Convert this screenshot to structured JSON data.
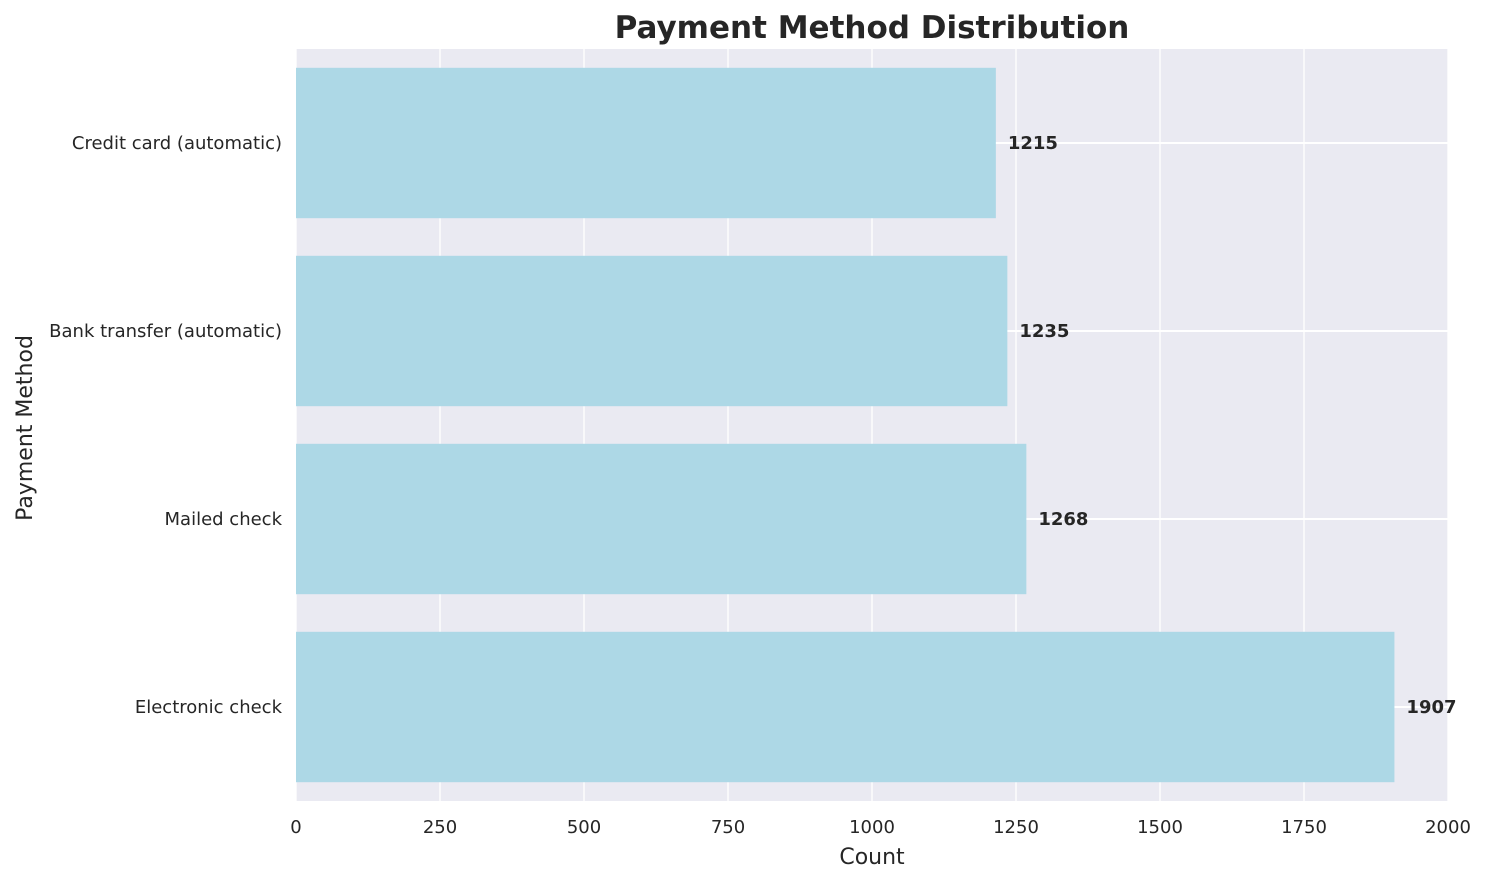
{
  "chart_data": {
    "type": "bar",
    "orientation": "horizontal",
    "title": "Payment Method Distribution",
    "xlabel": "Count",
    "ylabel": "Payment Method",
    "categories": [
      "Electronic check",
      "Mailed check",
      "Bank transfer (automatic)",
      "Credit card (automatic)"
    ],
    "values": [
      1907,
      1268,
      1235,
      1215
    ],
    "xlim": [
      0,
      2000
    ],
    "xticks": [
      0,
      250,
      500,
      750,
      1000,
      1250,
      1500,
      1750,
      2000
    ],
    "grid": true,
    "colors": {
      "bar": "#add8e6",
      "plot_background": "#eaeaf2",
      "grid": "#ffffff",
      "text": "#262626"
    }
  }
}
